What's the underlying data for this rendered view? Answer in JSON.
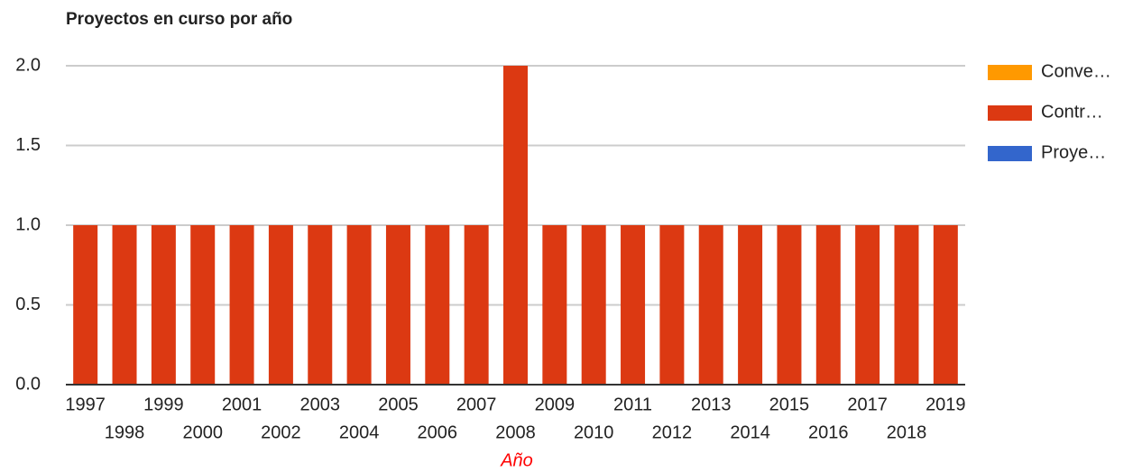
{
  "chart_data": {
    "type": "stacked_bar",
    "title": "Proyectos en curso por año",
    "x_axis_label": "Año",
    "categories": [
      "1997",
      "1998",
      "1999",
      "2000",
      "2001",
      "2002",
      "2003",
      "2004",
      "2005",
      "2006",
      "2007",
      "2008",
      "2009",
      "2010",
      "2011",
      "2012",
      "2013",
      "2014",
      "2015",
      "2016",
      "2017",
      "2018",
      "2019"
    ],
    "series": [
      {
        "name": "Conve…",
        "color": "#ff9900",
        "values": [
          0,
          0,
          0,
          0,
          0,
          0,
          0,
          0,
          0,
          0,
          0,
          0,
          0,
          0,
          0,
          0,
          0,
          0,
          0,
          0,
          0,
          0,
          0
        ]
      },
      {
        "name": "Contr…",
        "color": "#dc3912",
        "values": [
          1,
          1,
          1,
          1,
          1,
          1,
          1,
          1,
          1,
          1,
          1,
          2,
          1,
          1,
          1,
          1,
          1,
          1,
          1,
          1,
          1,
          1,
          1
        ]
      },
      {
        "name": "Proye…",
        "color": "#3366cc",
        "values": [
          0,
          0,
          0,
          0,
          0,
          0,
          0,
          0,
          0,
          0,
          0,
          0,
          0,
          0,
          0,
          0,
          0,
          0,
          0,
          0,
          0,
          0,
          0
        ]
      }
    ],
    "ylim": [
      0,
      2
    ],
    "yticks": [
      {
        "value": 0,
        "label": "0.0"
      },
      {
        "value": 0.5,
        "label": "0.5"
      },
      {
        "value": 1,
        "label": "1.0"
      },
      {
        "value": 1.5,
        "label": "1.5"
      },
      {
        "value": 2,
        "label": "2.0"
      }
    ],
    "grid": true,
    "legend": "right"
  }
}
